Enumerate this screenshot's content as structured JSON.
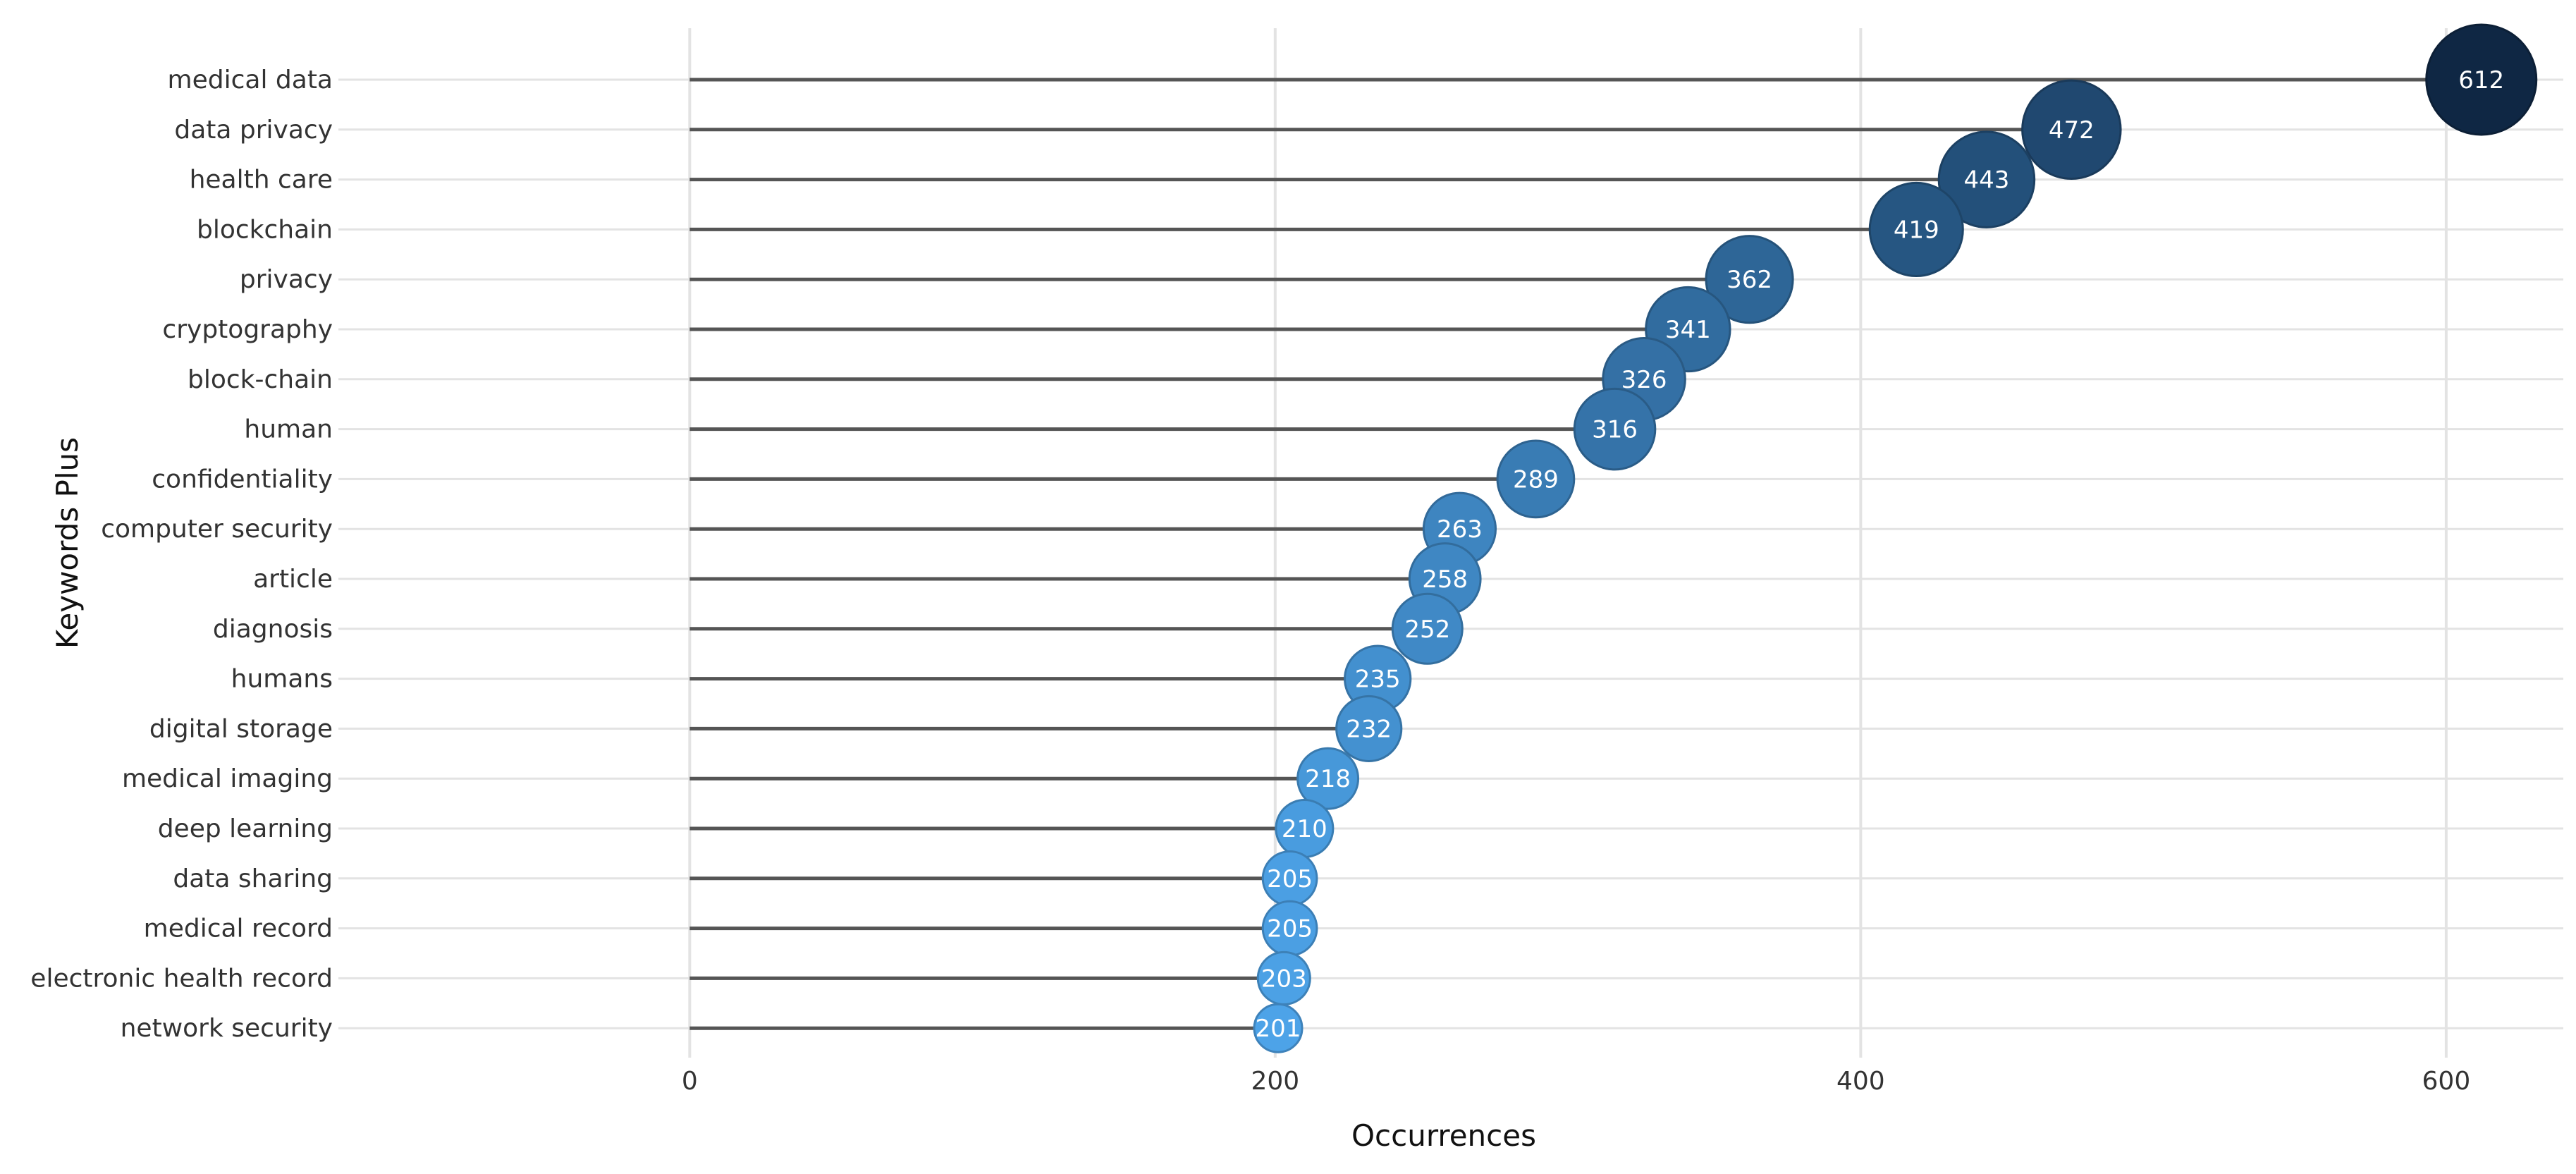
{
  "chart_data": {
    "type": "lollipop",
    "title": "",
    "xlabel": "Occurrences",
    "ylabel": "Keywords Plus",
    "xlim": [
      -120,
      640
    ],
    "x_ticks": [
      0,
      200,
      400,
      600
    ],
    "grid": true,
    "legend": "none",
    "categories": [
      "medical data",
      "data privacy",
      "health care",
      "blockchain",
      "privacy",
      "cryptography",
      "block-chain",
      "human",
      "confidentiality",
      "computer security",
      "article",
      "diagnosis",
      "humans",
      "digital storage",
      "medical imaging",
      "deep learning",
      "data sharing",
      "medical record",
      "electronic health record",
      "network security"
    ],
    "values": [
      612,
      472,
      443,
      419,
      362,
      341,
      326,
      316,
      289,
      263,
      258,
      252,
      235,
      232,
      218,
      210,
      205,
      205,
      203,
      201
    ],
    "value_labels": [
      "612",
      "472",
      "443",
      "419",
      "362",
      "341",
      "326",
      "316",
      "289",
      "263",
      "258",
      "252",
      "235",
      "232",
      "218",
      "210",
      "205",
      "205",
      "203",
      "201"
    ],
    "colors": {
      "low": "#4da3e8",
      "high": "#0f2744",
      "stem": "#555555",
      "grid": "#e3e3e3"
    }
  }
}
